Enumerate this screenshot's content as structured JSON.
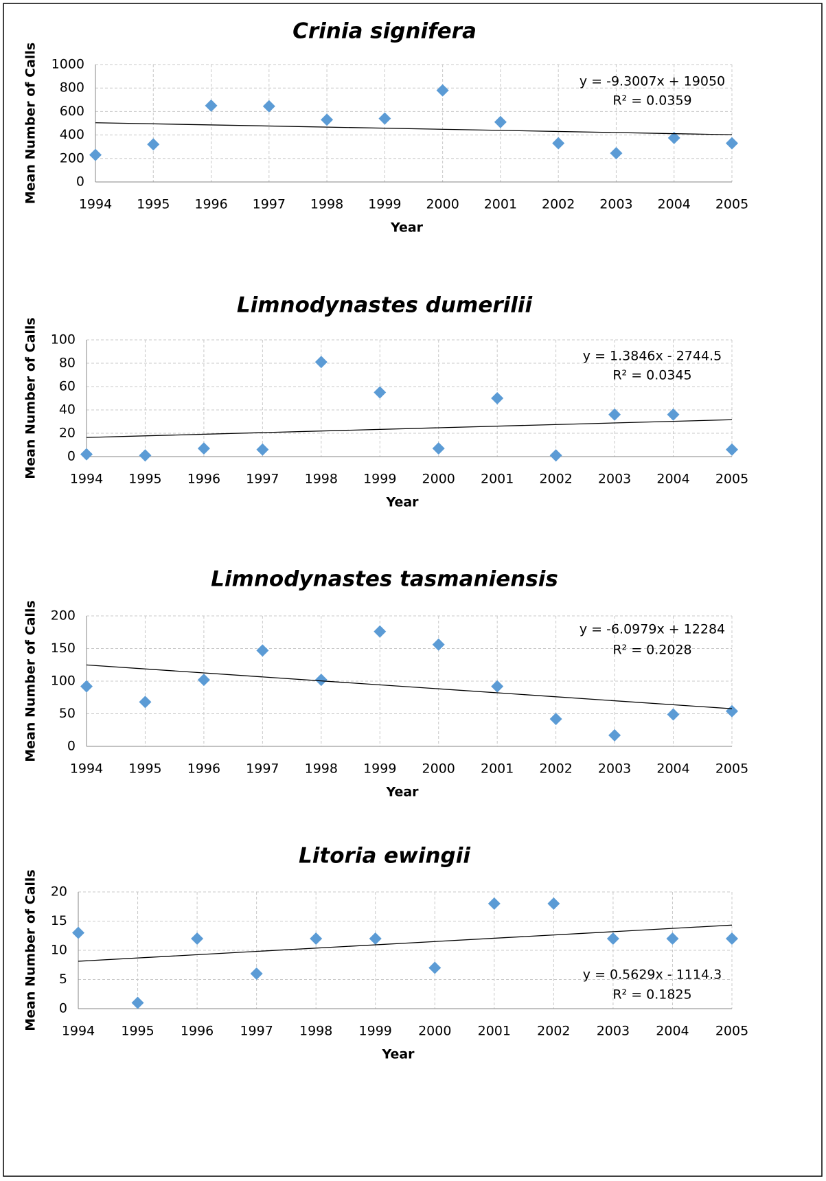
{
  "chart_data": [
    {
      "type": "scatter",
      "title": "Crinia signifera",
      "xlabel": "Year",
      "ylabel": "Mean Number of Calls",
      "x": [
        1994,
        1995,
        1996,
        1997,
        1998,
        1999,
        2000,
        2001,
        2002,
        2003,
        2004,
        2005
      ],
      "values": [
        230,
        320,
        650,
        645,
        530,
        540,
        780,
        510,
        330,
        245,
        375,
        330
      ],
      "color": "#5b9bd5",
      "grid": true,
      "xlim": [
        1994,
        2005
      ],
      "xticks": [
        1994,
        1995,
        1996,
        1997,
        1998,
        1999,
        2000,
        2001,
        2002,
        2003,
        2004,
        2005
      ],
      "ylim": [
        0,
        1000
      ],
      "yticks": [
        0,
        200,
        400,
        600,
        800,
        1000
      ],
      "trendline": {
        "slope": -9.3007,
        "intercept": 19050,
        "color": "#000000",
        "label": "y = -9.3007x + 19050",
        "r2_label": "R² = 0.0359"
      }
    },
    {
      "type": "scatter",
      "title": "Limnodynastes dumerilii",
      "xlabel": "Year",
      "ylabel": "Mean Number of Calls",
      "x": [
        1994,
        1995,
        1996,
        1997,
        1998,
        1999,
        2000,
        2001,
        2002,
        2003,
        2004,
        2005
      ],
      "values": [
        2,
        1,
        7,
        6,
        81,
        55,
        7,
        50,
        1,
        36,
        36,
        6
      ],
      "color": "#5b9bd5",
      "grid": true,
      "xlim": [
        1994,
        2005
      ],
      "xticks": [
        1994,
        1995,
        1996,
        1997,
        1998,
        1999,
        2000,
        2001,
        2002,
        2003,
        2004,
        2005
      ],
      "ylim": [
        0,
        100
      ],
      "yticks": [
        0,
        20,
        40,
        60,
        80,
        100
      ],
      "trendline": {
        "slope": 1.3846,
        "intercept": -2744.5,
        "color": "#000000",
        "label": "y = 1.3846x - 2744.5",
        "r2_label": "R² = 0.0345"
      }
    },
    {
      "type": "scatter",
      "title": "Limnodynastes tasmaniensis",
      "xlabel": "Year",
      "ylabel": "Mean Number of Calls",
      "x": [
        1994,
        1995,
        1996,
        1997,
        1998,
        1999,
        2000,
        2001,
        2002,
        2003,
        2004,
        2005
      ],
      "values": [
        92,
        68,
        102,
        147,
        102,
        176,
        156,
        92,
        42,
        17,
        49,
        54
      ],
      "color": "#5b9bd5",
      "grid": true,
      "xlim": [
        1994,
        2005
      ],
      "xticks": [
        1994,
        1995,
        1996,
        1997,
        1998,
        1999,
        2000,
        2001,
        2002,
        2003,
        2004,
        2005
      ],
      "ylim": [
        0,
        200
      ],
      "yticks": [
        0,
        50,
        100,
        150,
        200
      ],
      "trendline": {
        "slope": -6.0979,
        "intercept": 12284,
        "color": "#000000",
        "label": "y = -6.0979x + 12284",
        "r2_label": "R² = 0.2028"
      }
    },
    {
      "type": "scatter",
      "title": "Litoria ewingii",
      "xlabel": "Year",
      "ylabel": "Mean Number of Calls",
      "x": [
        1994,
        1995,
        1996,
        1997,
        1998,
        1999,
        2000,
        2001,
        2002,
        2003,
        2004,
        2005
      ],
      "values": [
        13,
        1,
        12,
        6,
        12,
        12,
        7,
        18,
        18,
        12,
        12,
        12
      ],
      "color": "#5b9bd5",
      "grid": true,
      "xlim": [
        1994,
        2005
      ],
      "xticks": [
        1994,
        1995,
        1996,
        1997,
        1998,
        1999,
        2000,
        2001,
        2002,
        2003,
        2004,
        2005
      ],
      "ylim": [
        0,
        20
      ],
      "yticks": [
        0,
        5,
        10,
        15,
        20
      ],
      "trendline": {
        "slope": 0.5629,
        "intercept": -1114.3,
        "color": "#000000",
        "label": "y = 0.5629x - 1114.3",
        "r2_label": "R² = 0.1825"
      }
    }
  ]
}
